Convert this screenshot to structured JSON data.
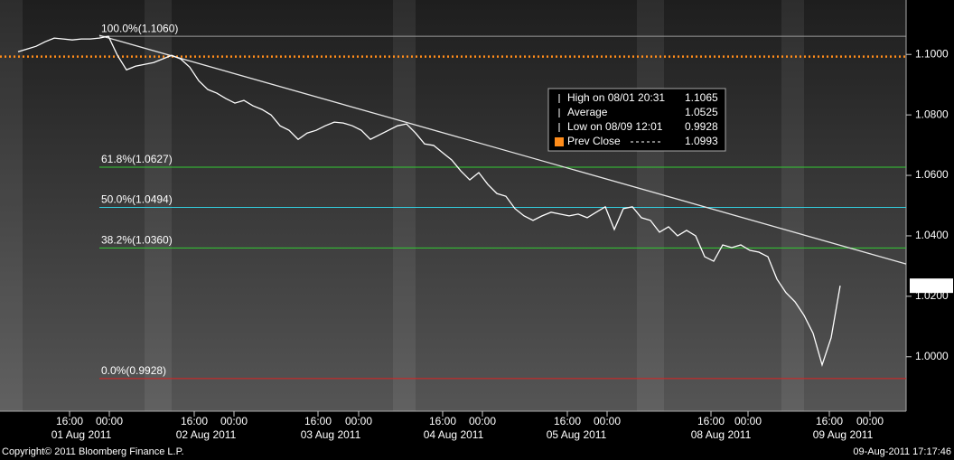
{
  "chart_data": {
    "type": "line",
    "series": [
      {
        "color": "#ffffff",
        "values": [
          1.1009,
          1.1018,
          1.1027,
          1.1042,
          1.1054,
          1.1051,
          1.1048,
          1.1051,
          1.1051,
          1.1054,
          1.106,
          1.0997,
          1.0949,
          1.0961,
          1.0967,
          1.0973,
          1.0985,
          1.0997,
          1.0985,
          1.0958,
          1.0913,
          1.0884,
          1.0872,
          1.0854,
          1.0839,
          1.0848,
          1.083,
          1.0818,
          1.08,
          1.0764,
          1.0749,
          1.0719,
          1.074,
          1.0749,
          1.0764,
          1.0776,
          1.0773,
          1.0764,
          1.0749,
          1.0719,
          1.0734,
          1.0749,
          1.0764,
          1.077,
          1.074,
          1.0704,
          1.0699,
          1.0675,
          1.0651,
          1.0615,
          1.0585,
          1.0609,
          1.057,
          1.054,
          1.0531,
          1.049,
          1.0466,
          1.0451,
          1.0466,
          1.0478,
          1.0472,
          1.0466,
          1.0472,
          1.046,
          1.0478,
          1.0496,
          1.0421,
          1.049,
          1.0496,
          1.046,
          1.0451,
          1.0412,
          1.043,
          1.04,
          1.0418,
          1.04,
          1.0331,
          1.0316,
          1.037,
          1.0361,
          1.037,
          1.0352,
          1.0346,
          1.0331,
          1.0257,
          1.0212,
          1.0182,
          1.0137,
          1.0078,
          0.9973,
          1.0063,
          1.0235
        ]
      }
    ],
    "xlim": [
      -1,
      99.3
    ],
    "ylim": [
      0.982,
      1.118
    ],
    "yticks": [
      {
        "value": 1.1,
        "label": "1.1000"
      },
      {
        "value": 1.08,
        "label": "1.0800"
      },
      {
        "value": 1.06,
        "label": "1.0600"
      },
      {
        "value": 1.04,
        "label": "1.0400"
      },
      {
        "value": 1.02,
        "label": "1.0200"
      },
      {
        "value": 1.0,
        "label": "1.0000"
      }
    ],
    "xticks": [
      {
        "value": 6.7,
        "label": "16:00"
      },
      {
        "value": 11.1,
        "label": "00:00"
      },
      {
        "value": 20.5,
        "label": "16:00"
      },
      {
        "value": 24.9,
        "label": "00:00"
      },
      {
        "value": 34.2,
        "label": "16:00"
      },
      {
        "value": 38.7,
        "label": "00:00"
      },
      {
        "value": 48,
        "label": "16:00"
      },
      {
        "value": 52.4,
        "label": "00:00"
      },
      {
        "value": 61.8,
        "label": "16:00"
      },
      {
        "value": 66.2,
        "label": "00:00"
      },
      {
        "value": 77.7,
        "label": "16:00"
      },
      {
        "value": 81.8,
        "label": "00:00"
      },
      {
        "value": 90.8,
        "label": "16:00"
      },
      {
        "value": 95.3,
        "label": "00:00"
      }
    ],
    "xdates": [
      {
        "value": 8,
        "label": "01 Aug 2011"
      },
      {
        "value": 21.8,
        "label": "02 Aug 2011"
      },
      {
        "value": 35.6,
        "label": "03 Aug 2011"
      },
      {
        "value": 49.2,
        "label": "04 Aug 2011"
      },
      {
        "value": 62.8,
        "label": "05 Aug 2011"
      },
      {
        "value": 78.8,
        "label": "08 Aug 2011"
      },
      {
        "value": 92.3,
        "label": "09 Aug 2011"
      }
    ],
    "levels": [
      {
        "label": "100.0%(1.1060)",
        "value": 1.106,
        "color": "#9a9a9a"
      },
      {
        "label": "61.8%(1.0627)",
        "value": 1.0627,
        "color": "#33cc33"
      },
      {
        "label": "50.0%(1.0494)",
        "value": 1.0494,
        "color": "#33ccdd"
      },
      {
        "label": "38.2%(1.0360)",
        "value": 1.036,
        "color": "#33cc33"
      },
      {
        "label": "0.0%(0.9928)",
        "value": 0.9928,
        "color": "#dd2222"
      }
    ],
    "trend_line": {
      "x": [
        10,
        99.3
      ],
      "y": [
        1.1063,
        1.0307
      ]
    },
    "legend": [
      {
        "name": "High on 08/01 20:31",
        "value": 1.1065
      },
      {
        "name": "Average",
        "value": 1.0525
      },
      {
        "name": "Low on 08/09 12:01",
        "value": 0.9928
      },
      {
        "name": "Prev Close",
        "value": 1.0993,
        "color": "#ff8c1a"
      }
    ],
    "last_price": 1.0235,
    "footer_left": "Copyright© 2011 Bloomberg Finance L.P.",
    "footer_right": "09-Aug-2011 17:17:46"
  }
}
